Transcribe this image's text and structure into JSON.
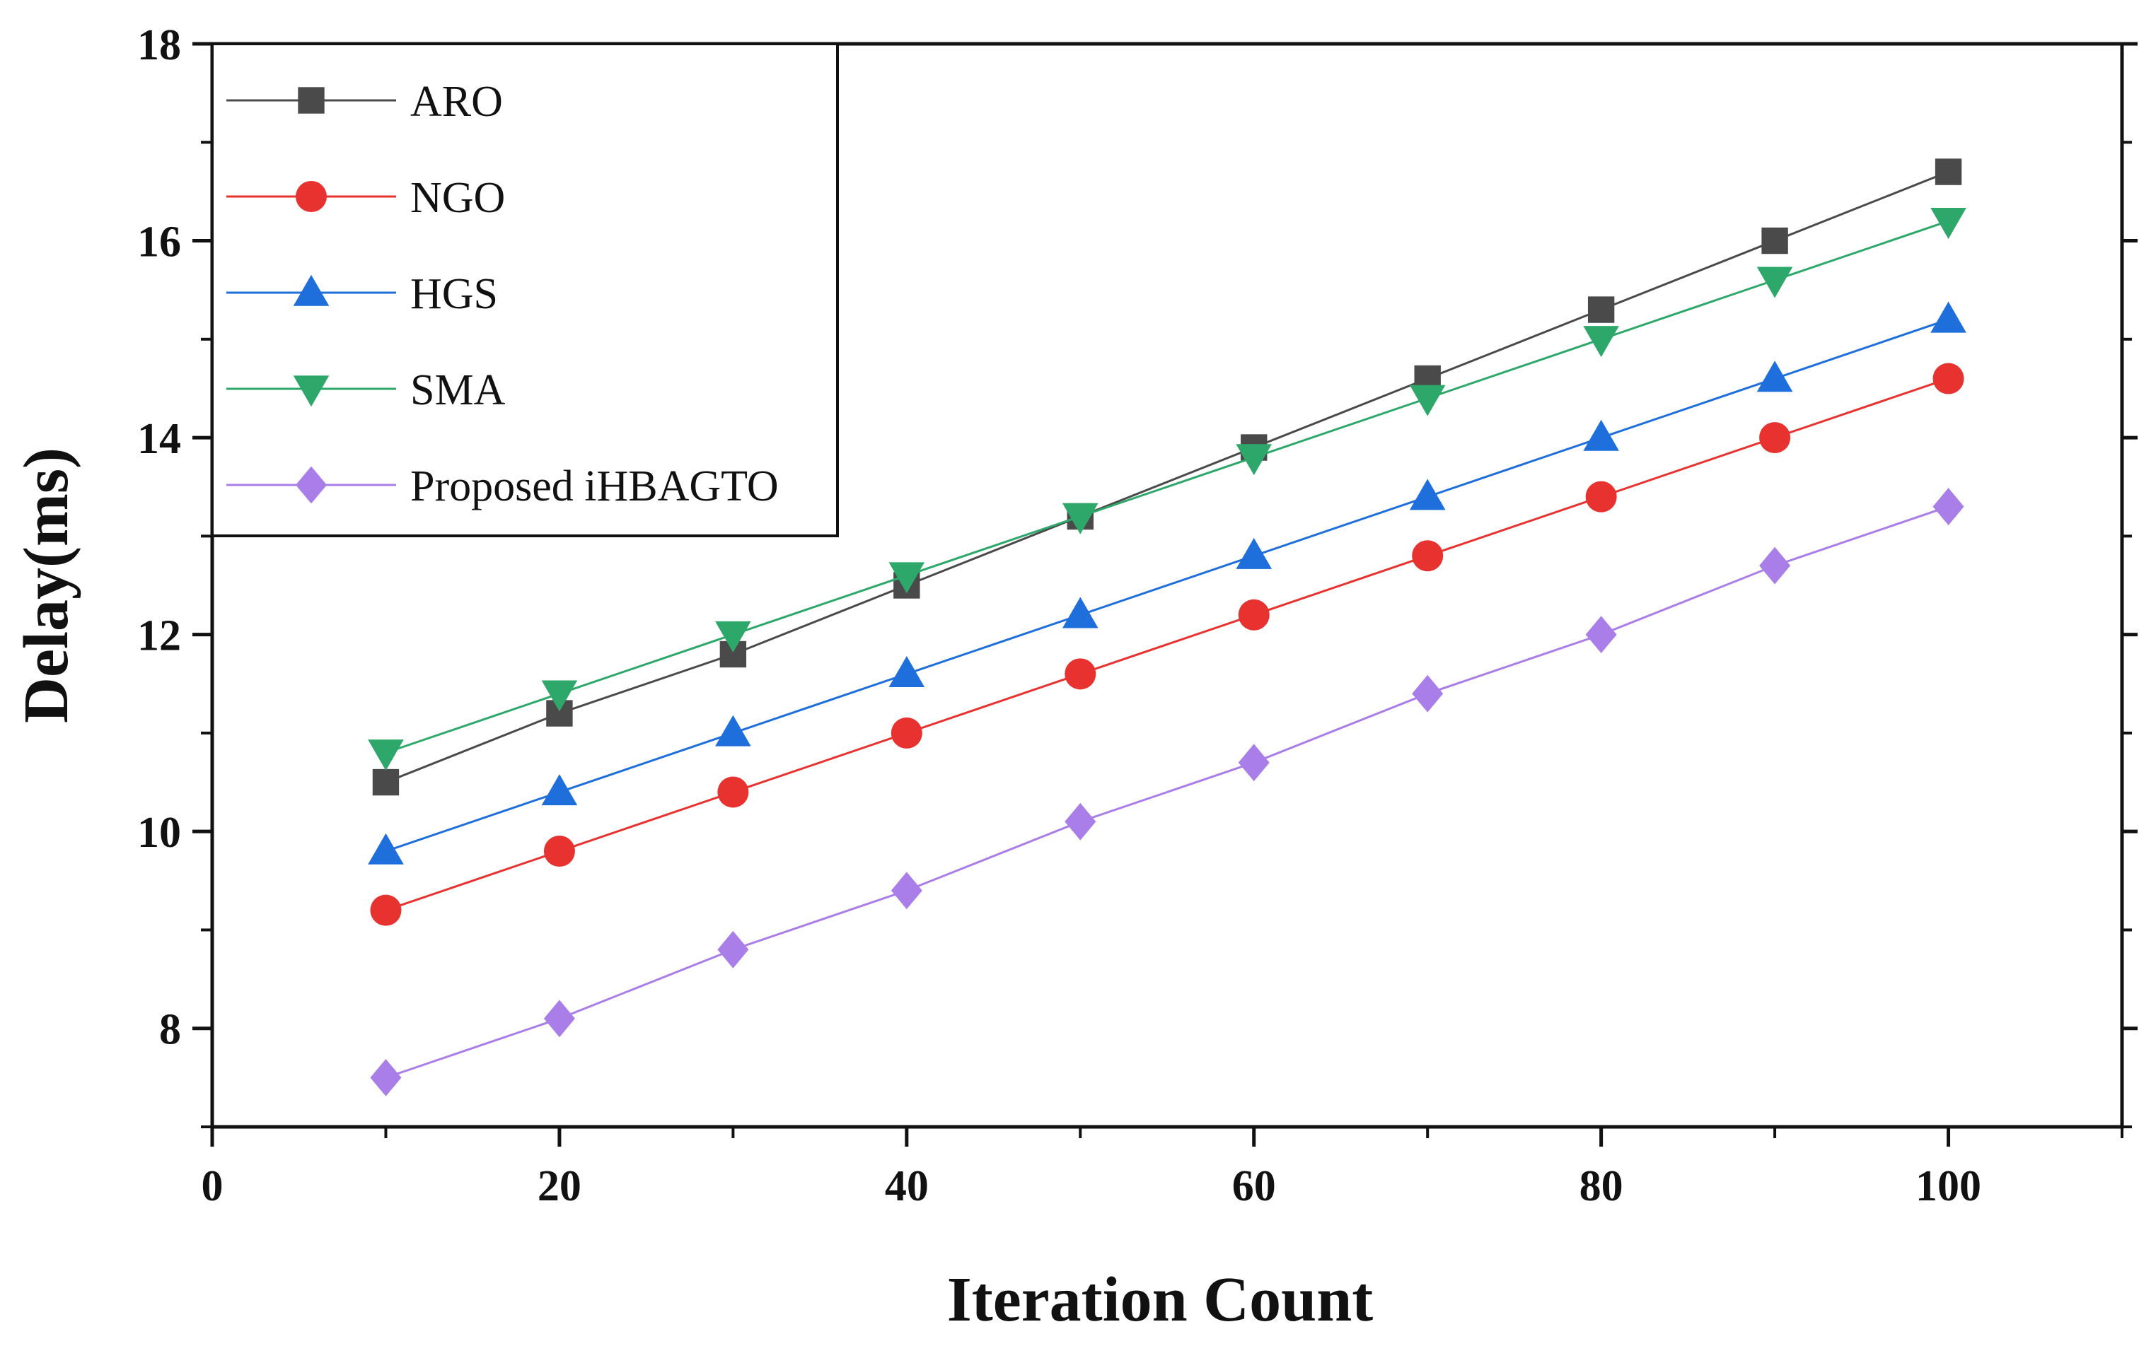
{
  "chart_data": {
    "type": "line",
    "title": "",
    "xlabel": "Iteration Count",
    "ylabel": "Delay(ms)",
    "xlim": [
      0,
      110
    ],
    "ylim": [
      7,
      18
    ],
    "xticks": [
      0,
      20,
      40,
      60,
      80,
      100
    ],
    "yticks": [
      8,
      10,
      12,
      14,
      16,
      18
    ],
    "grid": false,
    "legend_position": "top-left",
    "x": [
      10,
      20,
      30,
      40,
      50,
      60,
      70,
      80,
      90,
      100
    ],
    "series": [
      {
        "name": "ARO",
        "color": "#4a4a4a",
        "marker": "square",
        "values": [
          10.5,
          11.2,
          11.8,
          12.5,
          13.2,
          13.9,
          14.6,
          15.3,
          16.0,
          16.7
        ]
      },
      {
        "name": "NGO",
        "color": "#e8322f",
        "marker": "circle",
        "values": [
          9.2,
          9.8,
          10.4,
          11.0,
          11.6,
          12.2,
          12.8,
          13.4,
          14.0,
          14.6
        ]
      },
      {
        "name": "HGS",
        "color": "#1e6fdc",
        "marker": "triangle-up",
        "values": [
          9.8,
          10.4,
          11.0,
          11.6,
          12.2,
          12.8,
          13.4,
          14.0,
          14.6,
          15.2
        ]
      },
      {
        "name": "SMA",
        "color": "#2ea86a",
        "marker": "triangle-down",
        "values": [
          10.8,
          11.4,
          12.0,
          12.6,
          13.2,
          13.8,
          14.4,
          15.0,
          15.6,
          16.2
        ]
      },
      {
        "name": "Proposed iHBAGTO",
        "color": "#a97ee8",
        "marker": "diamond",
        "values": [
          7.5,
          8.1,
          8.8,
          9.4,
          10.1,
          10.7,
          11.4,
          12.0,
          12.7,
          13.3
        ]
      }
    ]
  }
}
